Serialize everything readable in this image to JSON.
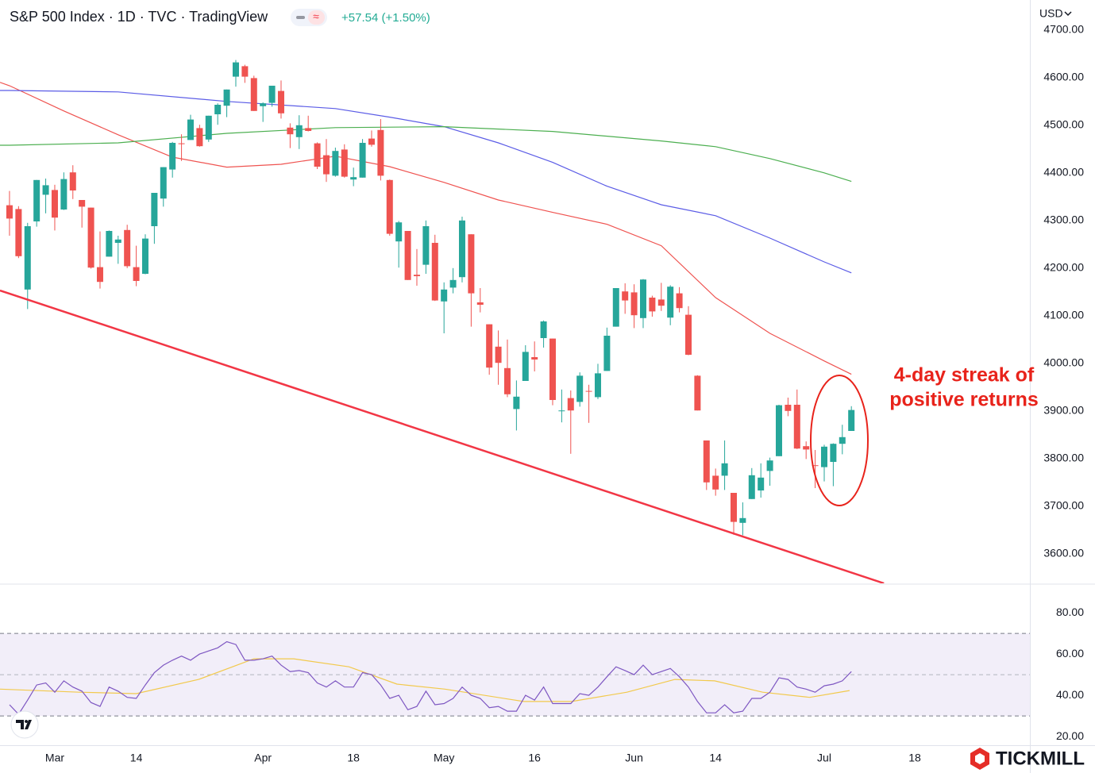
{
  "chart_data": [
    {
      "type": "candlestick",
      "title": "S&P 500 Index · 1D · TVC · TradingView",
      "subtitle": "+57.54 (+1.50%)",
      "currency": "USD",
      "xlim": [
        -1.05,
        112.72
      ],
      "xticks": [
        {
          "value": 5,
          "label": "Mar"
        },
        {
          "value": 14,
          "label": "14"
        },
        {
          "value": 28,
          "label": "Apr"
        },
        {
          "value": 38,
          "label": "18"
        },
        {
          "value": 48,
          "label": "May"
        },
        {
          "value": 58,
          "label": "16"
        },
        {
          "value": 69,
          "label": "Jun"
        },
        {
          "value": 78,
          "label": "14"
        },
        {
          "value": 90,
          "label": "Jul"
        },
        {
          "value": 100,
          "label": "18"
        }
      ],
      "ylim": [
        3538,
        4763
      ],
      "yticks": [
        {
          "value": 4700,
          "label": "4700.00"
        },
        {
          "value": 4600,
          "label": "4600.00"
        },
        {
          "value": 4500,
          "label": "4500.00"
        },
        {
          "value": 4400,
          "label": "4400.00"
        },
        {
          "value": 4300,
          "label": "4300.00"
        },
        {
          "value": 4200,
          "label": "4200.00"
        },
        {
          "value": 4100,
          "label": "4100.00"
        },
        {
          "value": 4000,
          "label": "4000.00"
        },
        {
          "value": 3900,
          "label": "3900.00"
        },
        {
          "value": 3800,
          "label": "3800.00"
        },
        {
          "value": 3700,
          "label": "3700.00"
        },
        {
          "value": 3600,
          "label": "3600.00"
        }
      ],
      "grid": false,
      "up_color": "#26a69a",
      "down_color": "#ef5350",
      "candles": {
        "open": [
          4332,
          4324,
          4155,
          4298,
          4354,
          4364,
          4323,
          4401,
          4343,
          4327,
          4202,
          4224,
          4253,
          4280,
          4202,
          4188,
          4288,
          4346,
          4407,
          4462,
          4469,
          4494,
          4470,
          4523,
          4541,
          4602,
          4624,
          4599,
          4540,
          4547,
          4572,
          4495,
          4475,
          4494,
          4462,
          4437,
          4394,
          4449,
          4386,
          4390,
          4472,
          4490,
          4385,
          4256,
          4278,
          4186,
          4207,
          4253,
          4130,
          4159,
          4181,
          4271,
          4128,
          4082,
          4035,
          3990,
          3904,
          3963,
          4013,
          4053,
          4052,
          3900,
          3927,
          3919,
          3942,
          3929,
          3984,
          4077,
          4151,
          4149,
          4095,
          4138,
          4134,
          4096,
          4147,
          4102,
          3974,
          3838,
          3764,
          3764,
          3728,
          3665,
          3715,
          3733,
          3774,
          3805,
          3913,
          3913,
          3826,
          3786,
          3782,
          3793,
          3831,
          3858
        ],
        "high": [
          4362,
          4330,
          4295,
          4385,
          4388,
          4375,
          4401,
          4416,
          4343,
          4327,
          4277,
          4279,
          4268,
          4291,
          4247,
          4271,
          4358,
          4412,
          4465,
          4481,
          4522,
          4501,
          4520,
          4546,
          4575,
          4637,
          4627,
          4604,
          4548,
          4583,
          4594,
          4504,
          4521,
          4520,
          4464,
          4471,
          4453,
          4460,
          4411,
          4471,
          4489,
          4513,
          4386,
          4299,
          4278,
          4240,
          4300,
          4270,
          4170,
          4200,
          4308,
          4271,
          4158,
          4082,
          4069,
          4050,
          3964,
          4038,
          4046,
          4090,
          4052,
          3945,
          3943,
          3981,
          3955,
          3999,
          4075,
          4158,
          4168,
          4166,
          4177,
          4142,
          4169,
          4164,
          4160,
          4120,
          3975,
          3838,
          3779,
          3838,
          3728,
          3708,
          3780,
          3790,
          3802,
          3913,
          3928,
          3945,
          3836,
          3818,
          3829,
          3832,
          3871,
          3910
        ],
        "low": [
          4268,
          4221,
          4114,
          4287,
          4315,
          4279,
          4322,
          4345,
          4285,
          4199,
          4157,
          4224,
          4209,
          4200,
          4162,
          4187,
          4251,
          4329,
          4390,
          4425,
          4469,
          4455,
          4465,
          4501,
          4517,
          4581,
          4589,
          4530,
          4507,
          4539,
          4514,
          4452,
          4450,
          4487,
          4408,
          4381,
          4392,
          4390,
          4372,
          4390,
          4455,
          4384,
          4268,
          4201,
          4175,
          4163,
          4188,
          4131,
          4063,
          4147,
          4170,
          4077,
          4107,
          3976,
          3955,
          3929,
          3859,
          3963,
          3983,
          4033,
          3912,
          3876,
          3810,
          3909,
          3875,
          3925,
          3984,
          4077,
          4104,
          4074,
          4074,
          4098,
          4110,
          4080,
          4107,
          4017,
          3901,
          3734,
          3722,
          3734,
          3640,
          3639,
          3715,
          3718,
          3743,
          3805,
          3889,
          3820,
          3799,
          3738,
          3752,
          3742,
          3809,
          3858
        ],
        "close": [
          4304,
          4225,
          4288,
          4385,
          4374,
          4306,
          4387,
          4363,
          4329,
          4201,
          4171,
          4278,
          4260,
          4204,
          4173,
          4262,
          4358,
          4412,
          4463,
          4461,
          4512,
          4456,
          4520,
          4543,
          4575,
          4632,
          4602,
          4530,
          4546,
          4583,
          4525,
          4481,
          4500,
          4488,
          4413,
          4397,
          4446,
          4392,
          4391,
          4463,
          4459,
          4394,
          4272,
          4296,
          4175,
          4183,
          4288,
          4132,
          4155,
          4175,
          4300,
          4147,
          4123,
          3991,
          4001,
          3935,
          3930,
          4024,
          4008,
          4088,
          3923,
          3901,
          3901,
          3974,
          3941,
          3979,
          4058,
          4158,
          4132,
          4101,
          4176,
          4109,
          4121,
          4161,
          4116,
          4018,
          3901,
          3750,
          3735,
          3790,
          3667,
          3675,
          3765,
          3760,
          3796,
          3912,
          3900,
          3821,
          3819,
          3785,
          3825,
          3831,
          3845,
          3902
        ]
      },
      "series": [
        {
          "color": "#ef5350",
          "x": [
            -1.05,
            0,
            6,
            12,
            18,
            24,
            30,
            36,
            42,
            48,
            54,
            60,
            66,
            72,
            78,
            84,
            90,
            93
          ],
          "values": [
            4590,
            4583,
            4530,
            4480,
            4433,
            4412,
            4418,
            4435,
            4413,
            4380,
            4343,
            4317,
            4292,
            4247,
            4138,
            4063,
            4005,
            3977
          ]
        },
        {
          "color": "#5b5ce6",
          "x": [
            -1.05,
            0,
            12,
            24,
            36,
            42,
            48,
            54,
            60,
            66,
            72,
            78,
            84,
            90,
            93
          ],
          "values": [
            4573,
            4573,
            4570,
            4550,
            4535,
            4517,
            4497,
            4463,
            4422,
            4372,
            4333,
            4310,
            4263,
            4213,
            4190
          ]
        },
        {
          "color": "#4caf50",
          "x": [
            -1.05,
            0,
            12,
            24,
            36,
            48,
            60,
            72,
            78,
            84,
            90,
            93
          ],
          "values": [
            4458,
            4458,
            4463,
            4483,
            4495,
            4497,
            4487,
            4467,
            4455,
            4430,
            4400,
            4382
          ]
        }
      ],
      "trendline": {
        "color": "#f23645",
        "x": [
          -1.05,
          96.6
        ],
        "values": [
          4153,
          3538
        ]
      },
      "annotation": {
        "lines": [
          "4-day streak of",
          "positive returns"
        ],
        "color": "#e8231b"
      },
      "logo": "TICKMILL"
    },
    {
      "type": "line",
      "xlim": [
        -1.05,
        112.72
      ],
      "ylim": [
        15.8,
        93.5
      ],
      "yticks": [
        {
          "value": 80,
          "label": "80.00"
        },
        {
          "value": 60,
          "label": "60.00"
        },
        {
          "value": 40,
          "label": "40.00"
        },
        {
          "value": 20,
          "label": "20.00"
        }
      ],
      "band": [
        30,
        70
      ],
      "midline": 50,
      "band_color": "#7e57c2",
      "series": [
        {
          "color": "#7e57c2",
          "values": [
            35.4,
            30.8,
            37.7,
            45,
            46,
            41.5,
            47,
            44,
            42,
            36.5,
            34.6,
            44,
            42,
            39,
            38.5,
            45,
            51,
            54.6,
            57,
            59,
            57,
            60,
            61.5,
            63,
            66,
            64.6,
            57,
            57,
            57.7,
            59,
            54.6,
            51.5,
            52,
            51,
            46,
            44,
            47,
            44,
            44,
            51,
            50,
            45,
            38.5,
            40,
            33,
            34.6,
            42,
            35.4,
            36,
            38.5,
            44,
            40,
            38.5,
            34,
            34.6,
            32.3,
            32.3,
            40,
            37.7,
            44,
            36,
            36,
            36,
            40.8,
            40,
            44,
            49,
            53.8,
            52,
            50,
            54.6,
            50,
            51.5,
            53,
            49,
            44,
            37,
            31.5,
            31.5,
            35.4,
            31.5,
            32.3,
            38.5,
            38.5,
            41.5,
            48.5,
            47.7,
            44,
            43,
            41.5,
            44.6,
            45.4,
            47,
            51.5
          ]
        },
        {
          "color": "#f2c94c",
          "x": [
            -1.05,
            7.7,
            14,
            20.9,
            27,
            31.4,
            37.5,
            42.8,
            48.1,
            56.8,
            62.1,
            68.2,
            73.5,
            77.9,
            83.2,
            88.4,
            92.8
          ],
          "values": [
            43,
            41.5,
            40.8,
            47.7,
            57.7,
            57.7,
            53.8,
            45.4,
            43,
            37,
            37,
            41.5,
            47.7,
            47,
            41.5,
            39,
            42.3
          ]
        }
      ]
    }
  ]
}
